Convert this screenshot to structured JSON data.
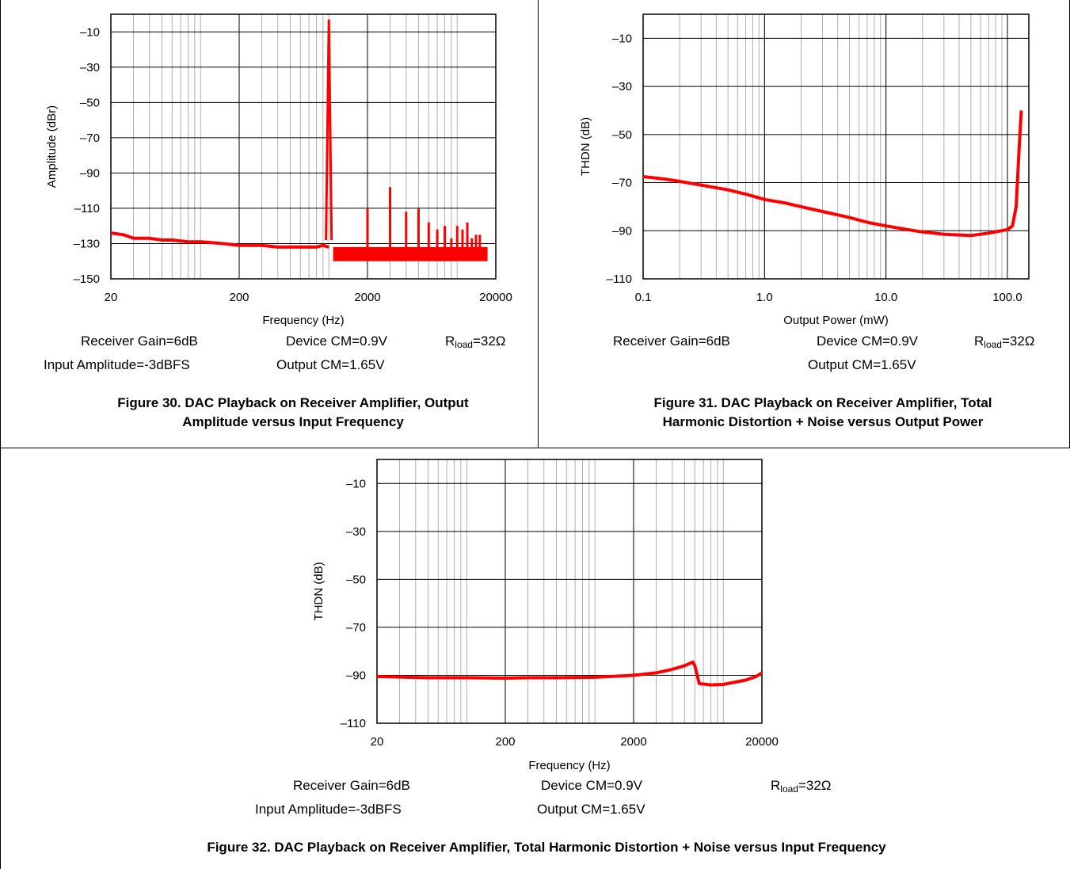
{
  "charts": [
    {
      "id": "fig30",
      "conditions": {
        "receiver_gain": "Receiver Gain=6dB",
        "device_cm": "Device CM=0.9V",
        "rload_prefix": "R",
        "rload_sub": "load",
        "rload_suffix": "=32Ω",
        "input_amplitude": "Input Amplitude=-3dBFS",
        "output_cm": "Output CM=1.65V"
      },
      "caption_line1": "Figure 30. DAC Playback on Receiver Amplifier, Output",
      "caption_line2": "Amplitude versus Input Frequency"
    },
    {
      "id": "fig31",
      "conditions": {
        "receiver_gain": "Receiver Gain=6dB",
        "device_cm": "Device CM=0.9V",
        "rload_prefix": "R",
        "rload_sub": "load",
        "rload_suffix": "=32Ω",
        "output_cm": "Output CM=1.65V"
      },
      "caption_line1": "Figure 31. DAC Playback on Receiver Amplifier, Total",
      "caption_line2": "Harmonic Distortion + Noise versus Output Power"
    },
    {
      "id": "fig32",
      "conditions": {
        "receiver_gain": "Receiver Gain=6dB",
        "device_cm": "Device CM=0.9V",
        "rload_prefix": "R",
        "rload_sub": "load",
        "rload_suffix": "=32Ω",
        "input_amplitude": "Input Amplitude=-3dBFS",
        "output_cm": "Output CM=1.65V"
      },
      "caption_line1": "Figure 32. DAC Playback on Receiver Amplifier, Total Harmonic Distortion + Noise versus Input Frequency",
      "caption_line2": ""
    }
  ],
  "chart_data": [
    {
      "type": "line",
      "xlabel": "Frequency (Hz)",
      "ylabel": "Amplitude (dBr)",
      "xscale": "log",
      "xlim": [
        20,
        20000
      ],
      "ylim": [
        -150,
        0
      ],
      "xticks": [
        20,
        200,
        2000,
        20000
      ],
      "xtick_labels": [
        "20",
        "200",
        "2000",
        "20000"
      ],
      "yticks": [
        -150,
        -130,
        -110,
        -90,
        -70,
        -50,
        -30,
        -10
      ],
      "ytick_labels": [
        "–150",
        "–130",
        "–110",
        "–90",
        "–70",
        "–50",
        "–30",
        "–10"
      ],
      "grid": true,
      "series_color": "#ff0000",
      "noise_floor": {
        "x": [
          20,
          25,
          30,
          40,
          50,
          60,
          80,
          100,
          150,
          200,
          300,
          400,
          500,
          600,
          700,
          800,
          900,
          1000
        ],
        "y": [
          -124,
          -125,
          -127,
          -127,
          -128,
          -128,
          -129,
          -129,
          -130,
          -131,
          -131,
          -132,
          -132,
          -132,
          -132,
          -132,
          -131,
          -132
        ]
      },
      "fundamental": {
        "x": 1000,
        "y": -3
      },
      "harmonics": {
        "x": [
          2000,
          3000,
          4000,
          5000,
          6000,
          7000,
          8000,
          9000,
          10000,
          11000,
          12000,
          13000,
          14000,
          15000
        ],
        "y": [
          -110,
          -98,
          -112,
          -110,
          -118,
          -122,
          -120,
          -127,
          -120,
          -122,
          -118,
          -127,
          -125,
          -125
        ]
      },
      "harmonic_floor": -136
    },
    {
      "type": "line",
      "xlabel": "Output Power (mW)",
      "ylabel": "THDN (dB)",
      "xscale": "log",
      "xlim": [
        0.1,
        150
      ],
      "ylim": [
        -110,
        0
      ],
      "xticks": [
        0.1,
        1.0,
        10.0,
        100.0
      ],
      "xtick_labels": [
        "0.1",
        "1.0",
        "10.0",
        "100.0"
      ],
      "yticks": [
        -110,
        -90,
        -70,
        -50,
        -30,
        -10
      ],
      "ytick_labels": [
        "–110",
        "–90",
        "–70",
        "–50",
        "–30",
        "–10"
      ],
      "grid": true,
      "series_color": "#ff0000",
      "series": [
        {
          "x": [
            0.1,
            0.15,
            0.2,
            0.3,
            0.5,
            0.7,
            1.0,
            1.5,
            2,
            3,
            5,
            7,
            10,
            15,
            20,
            30,
            50,
            70,
            100,
            110,
            118,
            125,
            130
          ],
          "y": [
            -67.5,
            -68.5,
            -69.5,
            -71,
            -73,
            -74.8,
            -77,
            -78.5,
            -80,
            -82,
            -84.5,
            -86.5,
            -88,
            -89.5,
            -90.5,
            -91.5,
            -92,
            -91,
            -89.5,
            -88,
            -80,
            -55,
            -40
          ]
        }
      ]
    },
    {
      "type": "line",
      "xlabel": "Frequency (Hz)",
      "ylabel": "THDN (dB)",
      "xscale": "log",
      "xlim": [
        20,
        20000
      ],
      "ylim": [
        -110,
        0
      ],
      "xticks": [
        20,
        200,
        2000,
        20000
      ],
      "xtick_labels": [
        "20",
        "200",
        "2000",
        "20000"
      ],
      "yticks": [
        -110,
        -90,
        -70,
        -50,
        -30,
        -10
      ],
      "ytick_labels": [
        "–110",
        "–90",
        "–70",
        "–50",
        "–30",
        "–10"
      ],
      "grid": true,
      "series_color": "#ff0000",
      "series": [
        {
          "x": [
            20,
            50,
            100,
            200,
            300,
            500,
            1000,
            2000,
            3000,
            4000,
            5000,
            5800,
            6000,
            6500,
            8000,
            10000,
            12000,
            15000,
            18000,
            20000
          ],
          "y": [
            -90.5,
            -91,
            -91,
            -91.2,
            -91,
            -91,
            -90.8,
            -90,
            -89,
            -87.5,
            -86,
            -84.5,
            -86,
            -93.5,
            -94,
            -93.8,
            -93,
            -92,
            -90.5,
            -89
          ]
        }
      ]
    }
  ]
}
